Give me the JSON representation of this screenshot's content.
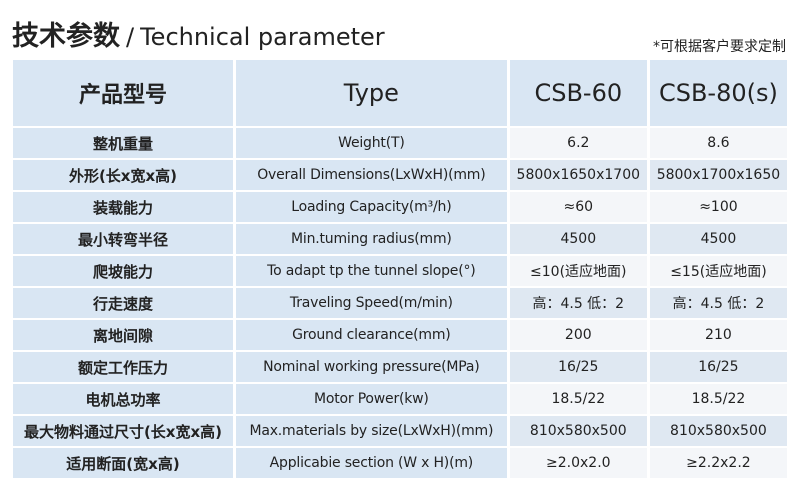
{
  "header": {
    "title_cn": "技术参数",
    "separator": "/",
    "title_en": "Technical parameter",
    "note": "*可根据客户要求定制"
  },
  "table": {
    "columns": [
      "产品型号",
      "Type",
      "CSB-60",
      "CSB-80(s)"
    ],
    "rows": [
      [
        "整机重量",
        "Weight(T)",
        "6.2",
        "8.6"
      ],
      [
        "外形(长x宽x高)",
        "Overall Dimensions(LxWxH)(mm)",
        "5800x1650x1700",
        "5800x1700x1650"
      ],
      [
        "装载能力",
        "Loading Capacity(m³/h)",
        "≈60",
        "≈100"
      ],
      [
        "最小转弯半径",
        "Min.tuming radius(mm)",
        "4500",
        "4500"
      ],
      [
        "爬坡能力",
        "To adapt tp the tunnel slope(°)",
        "≤10(适应地面)",
        "≤15(适应地面)"
      ],
      [
        "行走速度",
        "Traveling Speed(m/min)",
        "高：4.5 低：2",
        "高：4.5 低：2"
      ],
      [
        "离地间隙",
        "Ground clearance(mm)",
        "200",
        "210"
      ],
      [
        "额定工作压力",
        "Nominal working pressure(MPa)",
        "16/25",
        "16/25"
      ],
      [
        "电机总功率",
        "Motor Power(kw)",
        "18.5/22",
        "18.5/22"
      ],
      [
        "最大物料通过尺寸(长x宽x高)",
        "Max.materials by size(LxWxH)(mm)",
        "810x580x500",
        "810x580x500"
      ],
      [
        "适用断面(宽x高)",
        "Applicabie section (W x H)(m)",
        "≥2.0x2.0",
        "≥2.2x2.2"
      ]
    ]
  }
}
